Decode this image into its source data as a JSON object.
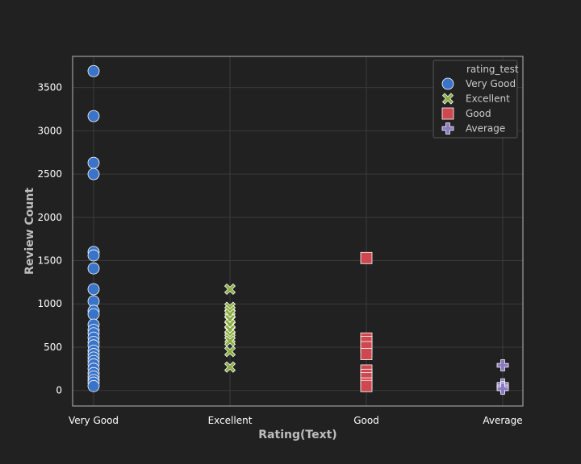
{
  "chart_data": {
    "type": "scatter",
    "xlabel": "Rating(Text)",
    "ylabel": "Review Count",
    "categories": [
      "Very Good",
      "Excellent",
      "Good",
      "Average"
    ],
    "ylim": [
      -180,
      3860
    ],
    "yticks": [
      0,
      500,
      1000,
      1500,
      2000,
      2500,
      3000,
      3500
    ],
    "grid": true,
    "legend": {
      "title": "rating_test",
      "placement": "top-right",
      "entries": [
        "Very Good",
        "Excellent",
        "Good",
        "Average"
      ]
    },
    "series": [
      {
        "name": "Very Good",
        "color": "#3a74c8",
        "marker": "circle",
        "x": "Very Good",
        "values": [
          3690,
          3170,
          2630,
          2500,
          1600,
          1560,
          1410,
          1170,
          1030,
          920,
          880,
          760,
          700,
          660,
          610,
          560,
          520,
          460,
          420,
          380,
          340,
          300,
          250,
          200,
          160,
          120,
          90,
          50
        ]
      },
      {
        "name": "Excellent",
        "color": "#8aad3f",
        "marker": "x",
        "x": "Excellent",
        "values": [
          1170,
          960,
          920,
          880,
          820,
          760,
          700,
          640,
          600,
          570,
          450,
          270
        ]
      },
      {
        "name": "Good",
        "color": "#d0484f",
        "marker": "square",
        "x": "Good",
        "values": [
          1530,
          600,
          560,
          500,
          420,
          230,
          180,
          140,
          80,
          50
        ]
      },
      {
        "name": "Average",
        "color": "#8c7bc1",
        "marker": "plus",
        "x": "Average",
        "values": [
          290,
          70,
          40,
          20
        ]
      }
    ]
  }
}
